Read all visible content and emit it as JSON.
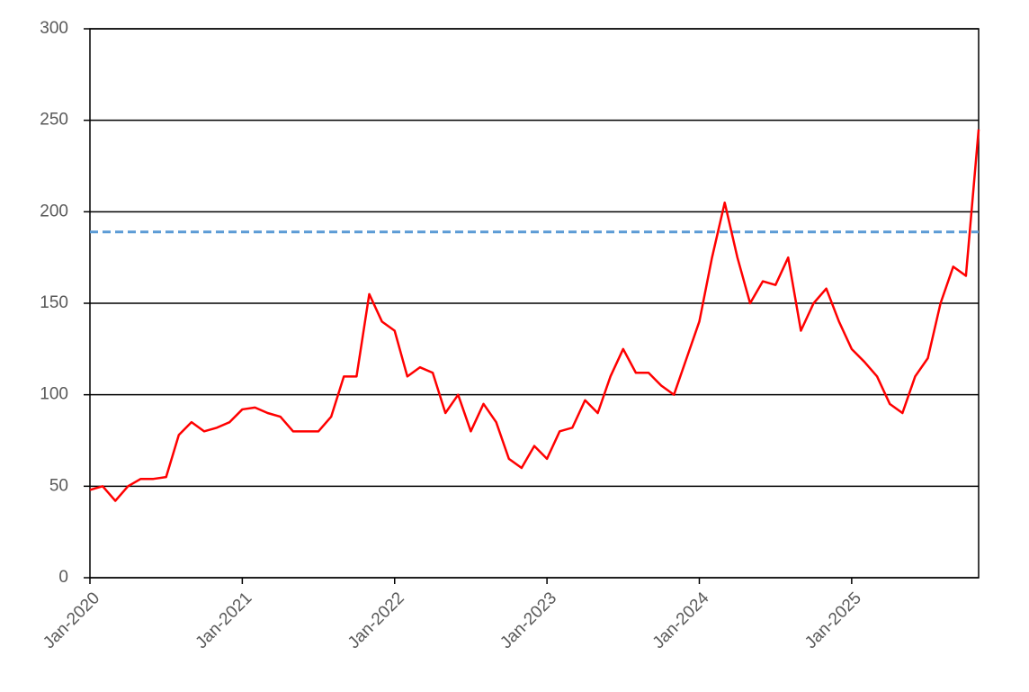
{
  "chart_data": {
    "type": "line",
    "x": [
      "2020-01",
      "2020-02",
      "2020-03",
      "2020-04",
      "2020-05",
      "2020-06",
      "2020-07",
      "2020-08",
      "2020-09",
      "2020-10",
      "2020-11",
      "2020-12",
      "2021-01",
      "2021-02",
      "2021-03",
      "2021-04",
      "2021-05",
      "2021-06",
      "2021-07",
      "2021-08",
      "2021-09",
      "2021-10",
      "2021-11",
      "2021-12",
      "2022-01",
      "2022-02",
      "2022-03",
      "2022-04",
      "2022-05",
      "2022-06",
      "2022-07",
      "2022-08",
      "2022-09",
      "2022-10",
      "2022-11",
      "2022-12",
      "2023-01",
      "2023-02",
      "2023-03",
      "2023-04",
      "2023-05",
      "2023-06",
      "2023-07",
      "2023-08",
      "2023-09",
      "2023-10",
      "2023-11",
      "2023-12",
      "2024-01",
      "2024-02",
      "2024-03",
      "2024-04",
      "2024-05",
      "2024-06",
      "2024-07",
      "2024-08",
      "2024-09",
      "2024-10",
      "2024-11",
      "2024-12",
      "2025-01",
      "2025-02",
      "2025-03",
      "2025-04",
      "2025-05",
      "2025-06",
      "2025-07",
      "2025-08",
      "2025-09",
      "2025-10",
      "2025-11"
    ],
    "series": [
      {
        "color": "#ff0000",
        "values": [
          48,
          50,
          42,
          50,
          54,
          54,
          55,
          78,
          85,
          80,
          82,
          85,
          92,
          93,
          90,
          88,
          80,
          80,
          80,
          88,
          110,
          110,
          155,
          140,
          135,
          110,
          115,
          112,
          90,
          100,
          80,
          95,
          85,
          65,
          60,
          72,
          65,
          80,
          82,
          97,
          90,
          110,
          125,
          112,
          112,
          105,
          100,
          120,
          140,
          175,
          205,
          175,
          150,
          162,
          160,
          175,
          135,
          150,
          158,
          140,
          125,
          118,
          110,
          95,
          90,
          110,
          120,
          150,
          170,
          165,
          245
        ]
      }
    ],
    "reference_line": {
      "value": 189,
      "color": "#5b9bd5"
    },
    "xlim": [
      "2020-01",
      "2025-11"
    ],
    "xticks": [
      {
        "value": "2020-01",
        "label": "Jan-2020"
      },
      {
        "value": "2021-01",
        "label": "Jan-2021"
      },
      {
        "value": "2022-01",
        "label": "Jan-2022"
      },
      {
        "value": "2023-01",
        "label": "Jan-2023"
      },
      {
        "value": "2024-01",
        "label": "Jan-2024"
      },
      {
        "value": "2025-01",
        "label": "Jan-2025"
      }
    ],
    "ylim": [
      0,
      300
    ],
    "yticks": [
      0,
      50,
      100,
      150,
      200,
      250,
      300
    ],
    "grid": true
  }
}
